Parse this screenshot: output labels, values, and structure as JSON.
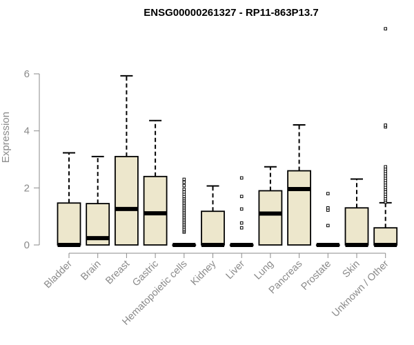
{
  "chart_data": {
    "type": "boxplot",
    "title": "ENSG00000261327 - RP11-863P13.7",
    "xlabel": "",
    "ylabel": "Expression",
    "ylim": [
      0,
      7.6
    ],
    "y_ticks": [
      0,
      2,
      4,
      6
    ],
    "grid": false,
    "colors": {
      "box_fill": "#ede7cc",
      "box_stroke": "#000000",
      "axis": "#8a8a8a"
    },
    "categories": [
      "Bladder",
      "Brain",
      "Breast",
      "Gastric",
      "Hematopoietic cells",
      "Kidney",
      "Liver",
      "Lung",
      "Pancreas",
      "Prostate",
      "Skin",
      "Unknown / Other"
    ],
    "boxes": [
      {
        "category": "Bladder",
        "whisker_low": 0,
        "q1": 0,
        "median": 0,
        "q3": 1.47,
        "whisker_high": 3.23,
        "outliers": []
      },
      {
        "category": "Brain",
        "whisker_low": 0,
        "q1": 0,
        "median": 0.24,
        "q3": 1.45,
        "whisker_high": 3.1,
        "outliers": []
      },
      {
        "category": "Breast",
        "whisker_low": 0,
        "q1": 0,
        "median": 1.26,
        "q3": 3.1,
        "whisker_high": 5.93,
        "outliers": []
      },
      {
        "category": "Gastric",
        "whisker_low": 0,
        "q1": 0,
        "median": 1.11,
        "q3": 2.4,
        "whisker_high": 4.36,
        "outliers": []
      },
      {
        "category": "Hematopoietic cells",
        "whisker_low": 0,
        "q1": 0,
        "median": 0,
        "q3": 0,
        "whisker_high": 0,
        "outliers": [
          0.45,
          0.5,
          0.55,
          0.62,
          0.68,
          0.74,
          0.8,
          0.86,
          0.92,
          0.98,
          1.04,
          1.1,
          1.16,
          1.22,
          1.28,
          1.34,
          1.4,
          1.46,
          1.52,
          1.58,
          1.64,
          1.7,
          1.78,
          1.86,
          1.95,
          2.08,
          2.2,
          2.3
        ]
      },
      {
        "category": "Kidney",
        "whisker_low": 0,
        "q1": 0,
        "median": 0,
        "q3": 1.18,
        "whisker_high": 2.07,
        "outliers": []
      },
      {
        "category": "Liver",
        "whisker_low": 0,
        "q1": 0,
        "median": 0,
        "q3": 0,
        "whisker_high": 0,
        "outliers": [
          0.6,
          0.77,
          1.26,
          1.7,
          2.35
        ]
      },
      {
        "category": "Lung",
        "whisker_low": 0,
        "q1": 0,
        "median": 1.1,
        "q3": 1.9,
        "whisker_high": 2.74,
        "outliers": []
      },
      {
        "category": "Pancreas",
        "whisker_low": 0,
        "q1": 0,
        "median": 1.96,
        "q3": 2.6,
        "whisker_high": 4.21,
        "outliers": []
      },
      {
        "category": "Prostate",
        "whisker_low": 0,
        "q1": 0,
        "median": 0,
        "q3": 0,
        "whisker_high": 0,
        "outliers": [
          0.68,
          1.22,
          1.3,
          1.8
        ]
      },
      {
        "category": "Skin",
        "whisker_low": 0,
        "q1": 0,
        "median": 0,
        "q3": 1.3,
        "whisker_high": 2.31,
        "outliers": []
      },
      {
        "category": "Unknown / Other",
        "whisker_low": 0,
        "q1": 0,
        "median": 0,
        "q3": 0.6,
        "whisker_high": 1.48,
        "outliers": [
          1.5,
          1.56,
          1.62,
          1.7,
          1.78,
          1.86,
          1.95,
          2.02,
          2.1,
          2.18,
          2.26,
          2.34,
          2.42,
          2.5,
          2.58,
          2.66,
          2.74,
          4.14,
          4.2,
          7.58
        ]
      }
    ]
  }
}
